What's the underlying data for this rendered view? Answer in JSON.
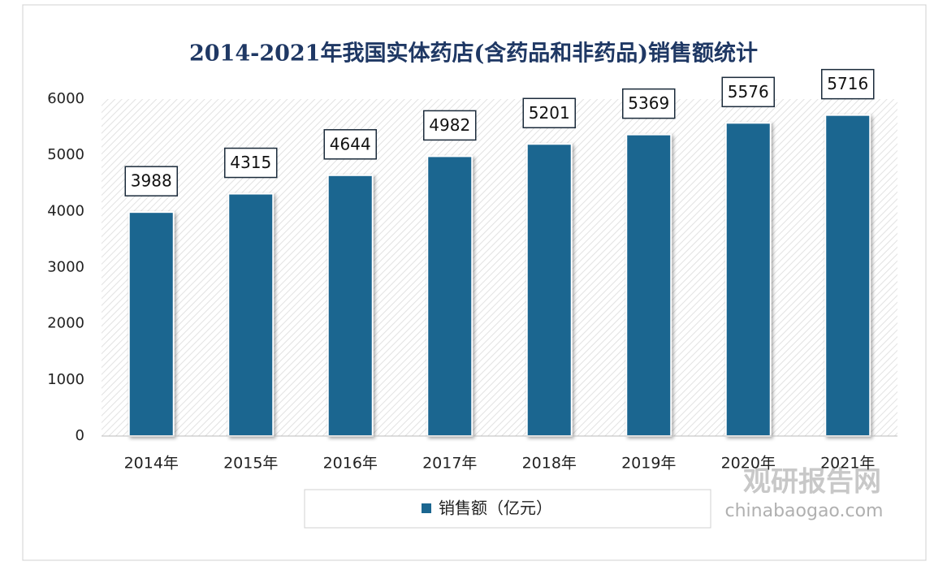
{
  "chart_data": {
    "type": "bar",
    "title": "2014-2021年我国实体药店(含药品和非药品)销售额统计",
    "categories": [
      "2014年",
      "2015年",
      "2016年",
      "2017年",
      "2018年",
      "2019年",
      "2020年",
      "2021年"
    ],
    "series": [
      {
        "name": "销售额（亿元）",
        "color": "#1b6690",
        "values": [
          3988,
          4315,
          4644,
          4982,
          5201,
          5369,
          5576,
          5716
        ]
      }
    ],
    "ylim": [
      0,
      6000
    ],
    "yticks": [
      0,
      1000,
      2000,
      3000,
      4000,
      5000,
      6000
    ],
    "grid": false,
    "legend": "bottom"
  },
  "watermark": {
    "name": "观研报告网",
    "url": "chinabaogao.com"
  }
}
